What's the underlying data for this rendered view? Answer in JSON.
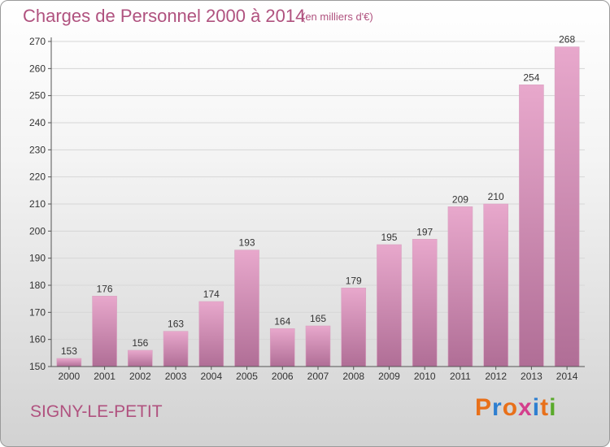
{
  "header": {
    "title": "Charges de Personnel 2000 à 2014",
    "subtitle": "(en milliers d'€)"
  },
  "footer": {
    "commune": "SIGNY-LE-PETIT",
    "logo_text": "Proxiti"
  },
  "colors": {
    "bar_top": "#e8a8cc",
    "bar_bottom": "#b06e96",
    "title": "#b0527f"
  },
  "chart_data": {
    "type": "bar",
    "categories": [
      "2000",
      "2001",
      "2002",
      "2003",
      "2004",
      "2005",
      "2006",
      "2007",
      "2008",
      "2009",
      "2010",
      "2011",
      "2012",
      "2013",
      "2014"
    ],
    "values": [
      153,
      176,
      156,
      163,
      174,
      193,
      164,
      165,
      179,
      195,
      197,
      209,
      210,
      254,
      268
    ],
    "title": "Charges de Personnel 2000 à 2014",
    "subtitle": "(en milliers d'€)",
    "xlabel": "",
    "ylabel": "",
    "ylim": [
      150,
      270
    ],
    "yticks": [
      150,
      160,
      170,
      180,
      190,
      200,
      210,
      220,
      230,
      240,
      250,
      260,
      270
    ],
    "grid": true,
    "legend": "none",
    "data_labels": true
  }
}
